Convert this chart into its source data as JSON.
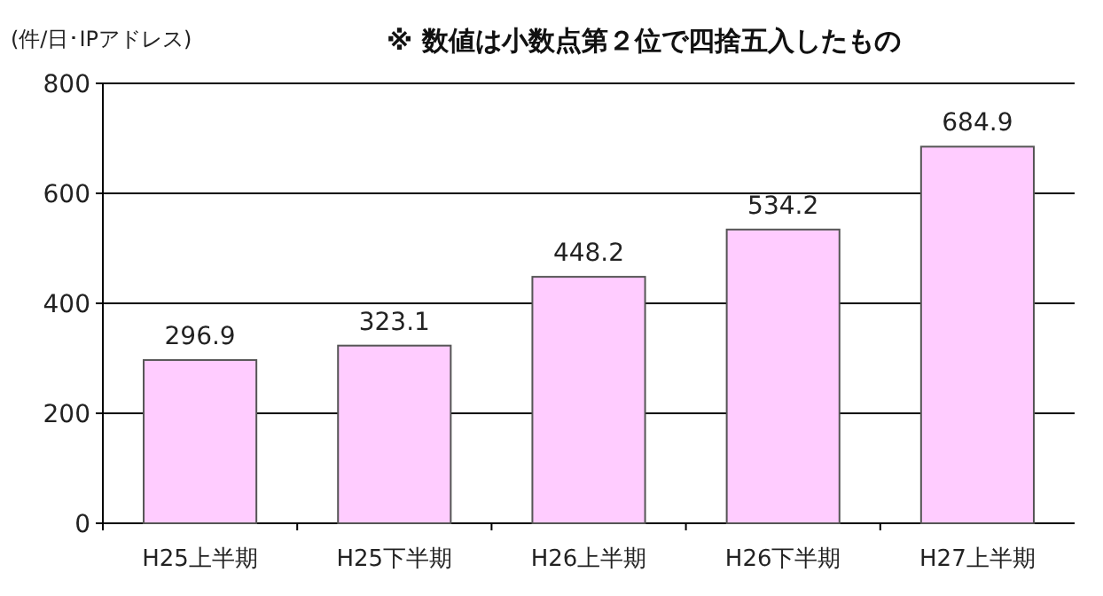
{
  "chart_data": {
    "type": "bar",
    "ylabel": "(件/日･IPアドレス)",
    "annotations": [
      "※ 数値は小数点第２位で四捨五入したもの"
    ],
    "categories": [
      "H25上半期",
      "H25下半期",
      "H26上半期",
      "H26下半期",
      "H27上半期"
    ],
    "values": [
      296.9,
      323.1,
      448.2,
      534.2,
      684.9
    ],
    "color": "#ffccff",
    "ylim": [
      0,
      800
    ],
    "yticks": [
      0,
      200,
      400,
      600,
      800
    ],
    "grid": "y",
    "data_labels": true
  }
}
